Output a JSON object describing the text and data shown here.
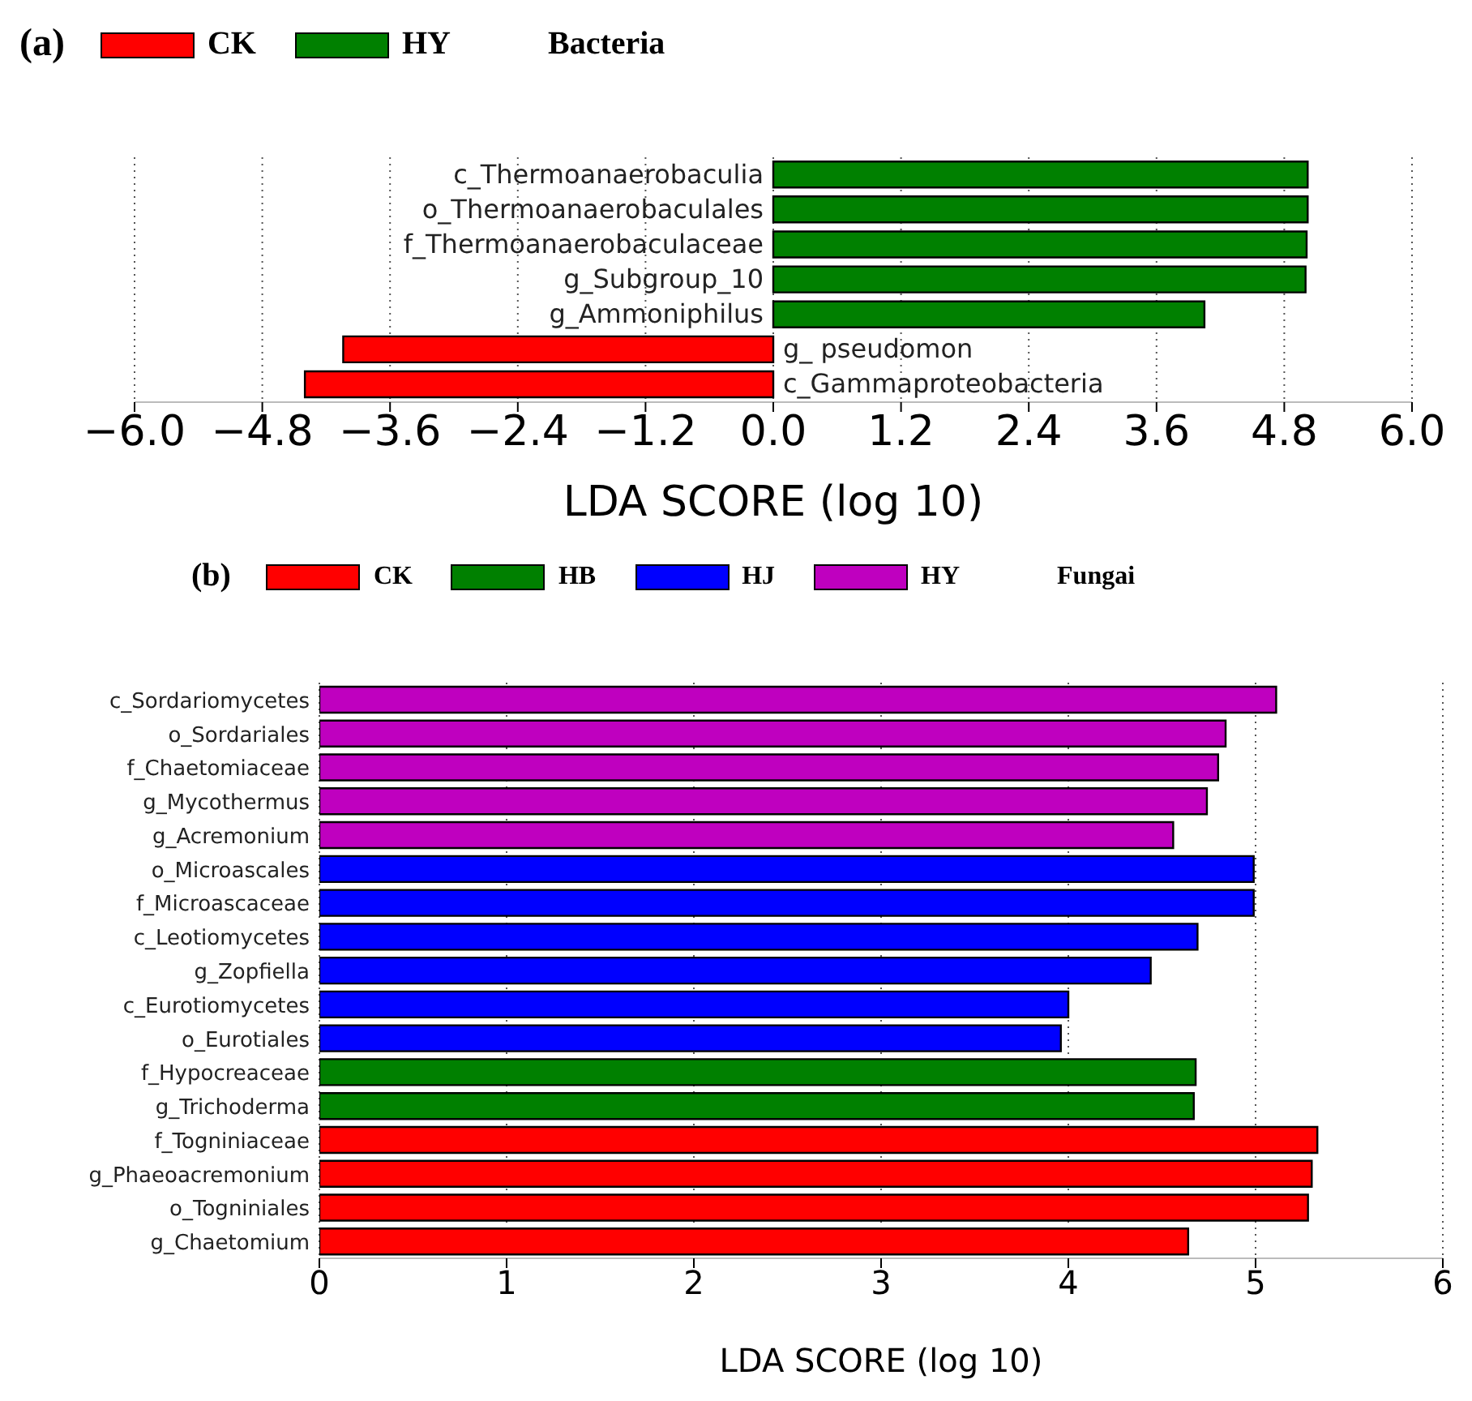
{
  "chart_data": [
    {
      "type": "bar",
      "orientation": "horizontal",
      "stacked": true,
      "title": "Bacteria",
      "annotations": [
        "(a)"
      ],
      "xlabel": "LDA SCORE (log 10)",
      "categories": [
        "c_Thermoanaerobaculia",
        "o_Thermoanaerobaculales",
        "f_Thermoanaerobaculaceae",
        "g_Subgroup_10",
        "g_Ammoniphilus",
        "g_ pseudomon",
        "c_Gammaproteobacteria"
      ],
      "series": [
        {
          "name": "CK",
          "color": "#ff0000",
          "values": [
            null,
            null,
            null,
            null,
            null,
            -4.04,
            -4.4
          ]
        },
        {
          "name": "HY",
          "color": "#008000",
          "values": [
            5.02,
            5.02,
            5.01,
            5.0,
            4.05,
            null,
            null
          ]
        }
      ],
      "xlim": [
        -6,
        6
      ],
      "xticks": [
        {
          "value": -6,
          "label": "−6.0"
        },
        {
          "value": -4.8,
          "label": "−4.8"
        },
        {
          "value": -3.6,
          "label": "−3.6"
        },
        {
          "value": -2.4,
          "label": "−2.4"
        },
        {
          "value": -1.2,
          "label": "−1.2"
        },
        {
          "value": 0,
          "label": "0.0"
        },
        {
          "value": 1.2,
          "label": "1.2"
        },
        {
          "value": 2.4,
          "label": "2.4"
        },
        {
          "value": 3.6,
          "label": "3.6"
        },
        {
          "value": 4.8,
          "label": "4.8"
        },
        {
          "value": 6,
          "label": "6.0"
        }
      ],
      "grid": "x",
      "legend": "top left"
    },
    {
      "type": "bar",
      "orientation": "horizontal",
      "stacked": true,
      "title": "Fungai",
      "annotations": [
        "(b)"
      ],
      "xlabel": "LDA SCORE (log 10)",
      "categories": [
        "c_Sordariomycetes",
        "o_Sordariales",
        "f_Chaetomiaceae",
        "g_Mycothermus",
        "g_Acremonium",
        "o_Microascales",
        "f_Microascaceae",
        "c_Leotiomycetes",
        "g_Zopfiella",
        "c_Eurotiomycetes",
        "o_Eurotiales",
        "f_Hypocreaceae",
        "g_Trichoderma",
        "f_Togniniaceae",
        "g_Phaeoacremonium",
        "o_Togniniales",
        "g_Chaetomium"
      ],
      "series": [
        {
          "name": "CK",
          "color": "#ff0000",
          "values": [
            null,
            null,
            null,
            null,
            null,
            null,
            null,
            null,
            null,
            null,
            null,
            null,
            null,
            5.33,
            5.3,
            5.28,
            4.64
          ]
        },
        {
          "name": "HB",
          "color": "#008000",
          "values": [
            null,
            null,
            null,
            null,
            null,
            null,
            null,
            null,
            null,
            null,
            null,
            4.68,
            4.67,
            null,
            null,
            null,
            null
          ]
        },
        {
          "name": "HJ",
          "color": "#0000ff",
          "values": [
            null,
            null,
            null,
            null,
            null,
            4.99,
            4.99,
            4.69,
            4.44,
            4.0,
            3.96,
            null,
            null,
            null,
            null,
            null,
            null
          ]
        },
        {
          "name": "HY",
          "color": "#bf00bf",
          "values": [
            5.11,
            4.84,
            4.8,
            4.74,
            4.56,
            null,
            null,
            null,
            null,
            null,
            null,
            null,
            null,
            null,
            null,
            null,
            null
          ]
        }
      ],
      "xlim": [
        0,
        6
      ],
      "xticks": [
        0,
        1,
        2,
        3,
        4,
        5,
        6
      ],
      "grid": "x",
      "legend": "top left"
    }
  ]
}
